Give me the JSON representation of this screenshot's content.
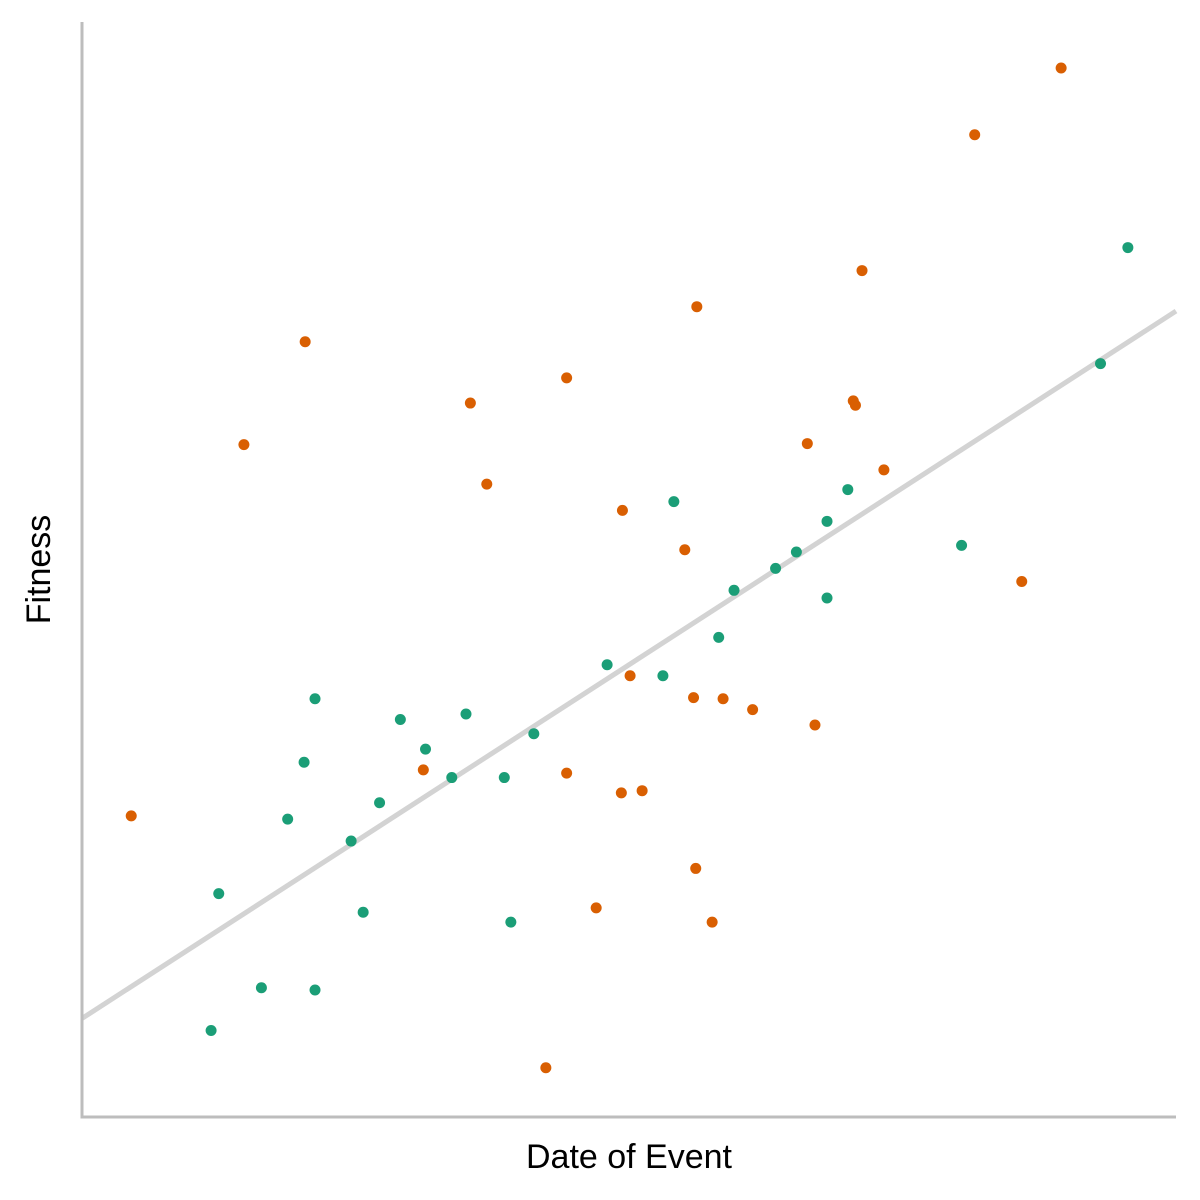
{
  "chart_data": {
    "type": "scatter",
    "title": "",
    "xlabel": "Date of Event",
    "ylabel": "Fitness",
    "xlim": [
      0,
      100
    ],
    "ylim": [
      0,
      100
    ],
    "x_ticks_shown": false,
    "y_ticks_shown": false,
    "grid": false,
    "legend": "none",
    "colors": {
      "axis": "#bdbdbd",
      "trend_line": "#d3d3d3"
    },
    "trend_line": {
      "x": [
        0,
        100
      ],
      "y": [
        9.0,
        73.6
      ]
    },
    "series": [
      {
        "color": "#1b9e77",
        "points": [
          {
            "x": 12.5,
            "y": 20.4
          },
          {
            "x": 11.8,
            "y": 7.9
          },
          {
            "x": 16.4,
            "y": 11.8
          },
          {
            "x": 18.8,
            "y": 27.2
          },
          {
            "x": 20.3,
            "y": 32.4
          },
          {
            "x": 21.3,
            "y": 38.2
          },
          {
            "x": 21.3,
            "y": 11.6
          },
          {
            "x": 24.6,
            "y": 25.2
          },
          {
            "x": 25.7,
            "y": 18.7
          },
          {
            "x": 27.2,
            "y": 28.7
          },
          {
            "x": 29.1,
            "y": 36.3
          },
          {
            "x": 31.4,
            "y": 33.6
          },
          {
            "x": 33.8,
            "y": 31.0
          },
          {
            "x": 35.1,
            "y": 36.8
          },
          {
            "x": 38.6,
            "y": 31.0
          },
          {
            "x": 39.2,
            "y": 17.8
          },
          {
            "x": 41.3,
            "y": 35.0
          },
          {
            "x": 48.0,
            "y": 41.3
          },
          {
            "x": 53.1,
            "y": 40.3
          },
          {
            "x": 54.1,
            "y": 56.2
          },
          {
            "x": 58.2,
            "y": 43.8
          },
          {
            "x": 59.6,
            "y": 48.1
          },
          {
            "x": 63.4,
            "y": 50.1
          },
          {
            "x": 65.3,
            "y": 51.6
          },
          {
            "x": 68.1,
            "y": 47.4
          },
          {
            "x": 68.1,
            "y": 54.4
          },
          {
            "x": 70.0,
            "y": 57.3
          },
          {
            "x": 80.4,
            "y": 52.2
          },
          {
            "x": 93.1,
            "y": 68.8
          },
          {
            "x": 95.6,
            "y": 79.4
          }
        ]
      },
      {
        "color": "#d95f02",
        "points": [
          {
            "x": 4.5,
            "y": 27.5
          },
          {
            "x": 14.8,
            "y": 61.4
          },
          {
            "x": 20.4,
            "y": 70.8
          },
          {
            "x": 31.2,
            "y": 31.7
          },
          {
            "x": 35.5,
            "y": 65.2
          },
          {
            "x": 37.0,
            "y": 57.8
          },
          {
            "x": 42.4,
            "y": 4.5
          },
          {
            "x": 44.3,
            "y": 67.5
          },
          {
            "x": 44.3,
            "y": 31.4
          },
          {
            "x": 47.0,
            "y": 19.1
          },
          {
            "x": 49.3,
            "y": 29.6
          },
          {
            "x": 49.4,
            "y": 55.4
          },
          {
            "x": 50.1,
            "y": 40.3
          },
          {
            "x": 51.2,
            "y": 29.8
          },
          {
            "x": 55.1,
            "y": 51.8
          },
          {
            "x": 55.9,
            "y": 38.3
          },
          {
            "x": 56.1,
            "y": 22.7
          },
          {
            "x": 56.2,
            "y": 74.0
          },
          {
            "x": 57.6,
            "y": 17.8
          },
          {
            "x": 58.6,
            "y": 38.2
          },
          {
            "x": 61.3,
            "y": 37.2
          },
          {
            "x": 66.3,
            "y": 61.5
          },
          {
            "x": 67.0,
            "y": 35.8
          },
          {
            "x": 70.5,
            "y": 65.4
          },
          {
            "x": 70.7,
            "y": 65.0
          },
          {
            "x": 71.3,
            "y": 77.3
          },
          {
            "x": 73.3,
            "y": 59.1
          },
          {
            "x": 81.6,
            "y": 89.7
          },
          {
            "x": 85.9,
            "y": 48.9
          },
          {
            "x": 89.5,
            "y": 95.8
          }
        ]
      }
    ]
  }
}
